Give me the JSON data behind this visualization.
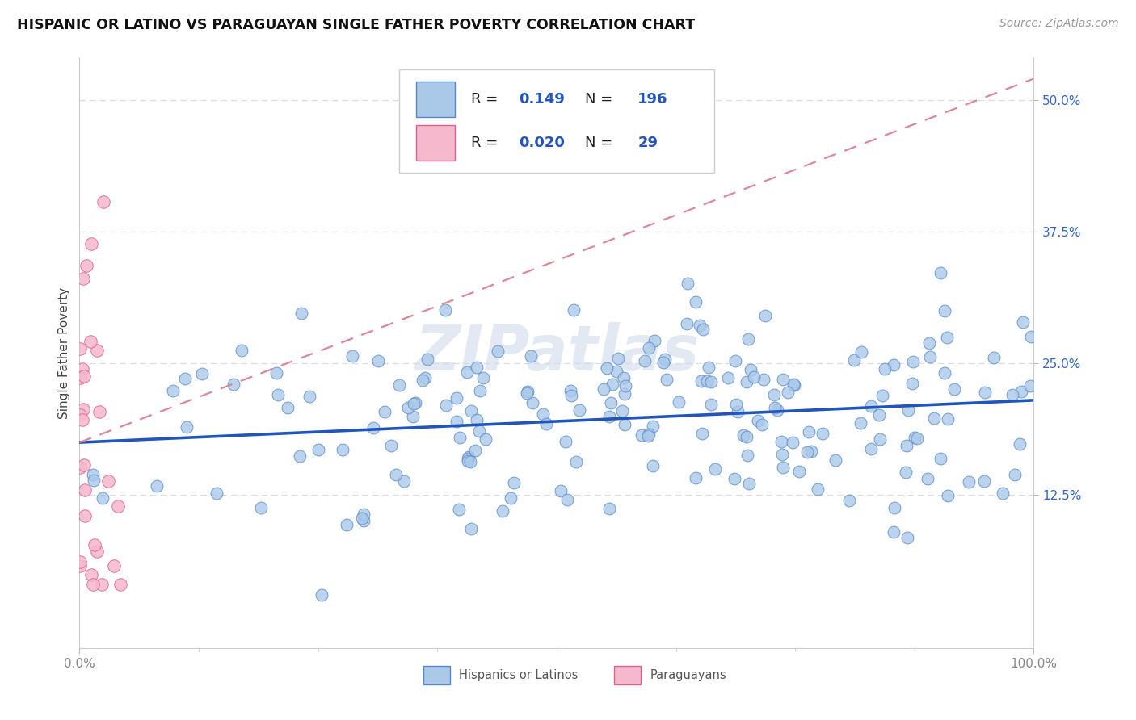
{
  "title": "HISPANIC OR LATINO VS PARAGUAYAN SINGLE FATHER POVERTY CORRELATION CHART",
  "source": "Source: ZipAtlas.com",
  "ylabel": "Single Father Poverty",
  "xlim": [
    0,
    1.0
  ],
  "ylim": [
    -0.02,
    0.54
  ],
  "ytick_positions": [
    0.125,
    0.25,
    0.375,
    0.5
  ],
  "yticklabels": [
    "12.5%",
    "25.0%",
    "37.5%",
    "50.0%"
  ],
  "hispanic_color": "#aac8e8",
  "hispanic_edge": "#5588cc",
  "paraguayan_color": "#f5b8cc",
  "paraguayan_edge": "#e06090",
  "trend_hispanic_color": "#2255bb",
  "trend_paraguayan_color": "#dd8899",
  "watermark": "ZIPatlas",
  "legend_R_hispanic": "0.149",
  "legend_N_hispanic": "196",
  "legend_R_paraguayan": "0.020",
  "legend_N_paraguayan": "29",
  "background_color": "#ffffff",
  "grid_color": "#dddddd",
  "ytick_color": "#3366cc",
  "axis_label_color": "#444444",
  "tick_label_color": "#888888",
  "legend_text_color": "#222222",
  "legend_value_color": "#2255bb",
  "source_color": "#999999"
}
